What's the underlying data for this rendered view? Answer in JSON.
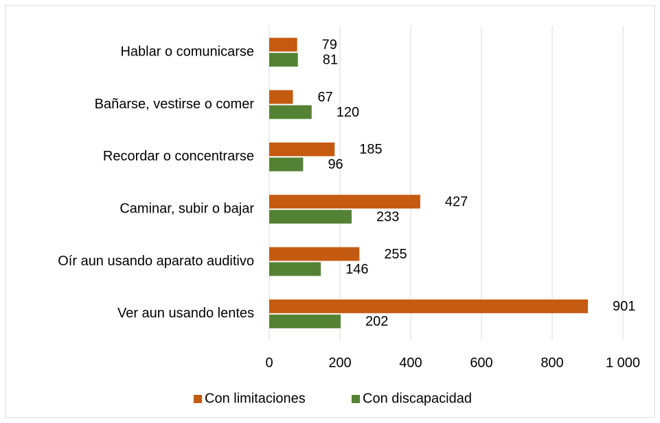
{
  "chart_data": {
    "type": "hbar",
    "categories": [
      "Hablar o comunicarse",
      "Bañarse, vestirse o comer",
      "Recordar o concentrarse",
      "Caminar, subir o bajar",
      "Oír aun usando aparato auditivo",
      "Ver aun usando lentes"
    ],
    "series": [
      {
        "name": "Con limitaciones",
        "color": "#c55a11",
        "values": [
          79,
          67,
          185,
          427,
          255,
          901
        ]
      },
      {
        "name": "Con discapacidad",
        "color": "#548235",
        "values": [
          81,
          120,
          96,
          233,
          146,
          202
        ]
      }
    ],
    "xlim": [
      0,
      1000
    ],
    "xticks": [
      0,
      200,
      400,
      600,
      800,
      {
        "value": 1000,
        "label": "1 000"
      }
    ],
    "grid": true,
    "legend": "bottom"
  }
}
